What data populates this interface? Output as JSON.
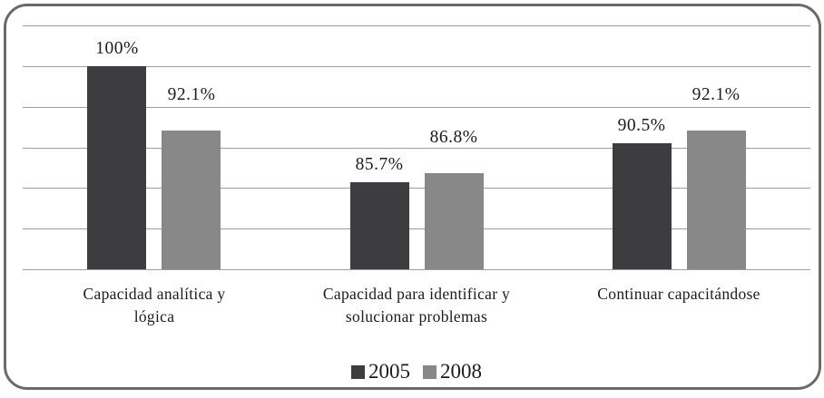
{
  "chart_data": {
    "type": "bar",
    "title": "",
    "xlabel": "",
    "ylabel": "",
    "categories": [
      "Capacidad analítica y\nlógica",
      "Capacidad para identificar y\nsolucionar problemas",
      "Continuar capacitándose"
    ],
    "series": [
      {
        "name": "2005",
        "values": [
          100,
          85.7,
          90.5
        ],
        "labels": [
          "100%",
          "85.7%",
          "90.5%"
        ],
        "color": "#3d3d3f"
      },
      {
        "name": "2008",
        "values": [
          92.1,
          86.8,
          92.1
        ],
        "labels": [
          "92.1%",
          "86.8%",
          "92.1%"
        ],
        "color": "#888888"
      }
    ],
    "ylim": [
      75,
      105
    ],
    "y_major_step": 5,
    "grid": true,
    "gridline_color": "#9e9e9e",
    "legend_position": "bottom",
    "frame_border_color": "#6a6a6a",
    "background": "#ffffff"
  }
}
